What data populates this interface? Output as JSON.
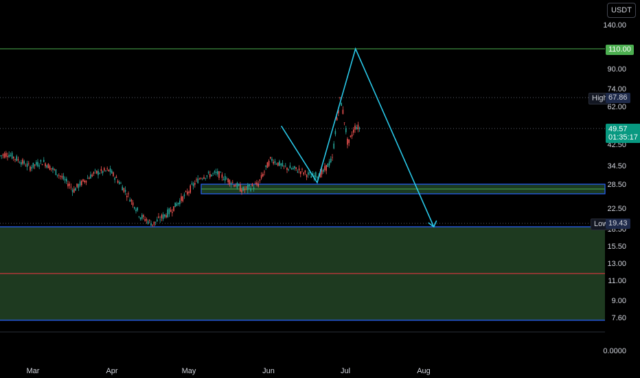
{
  "currency": "USDT",
  "price_axis": {
    "ticks": [
      "140.00",
      "90.00",
      "74.00",
      "62.00",
      "42.50",
      "34.50",
      "28.50",
      "22.50",
      "18.50",
      "15.50",
      "13.00",
      "11.00",
      "9.00",
      "7.60",
      "0.0000"
    ],
    "values": [
      140,
      90,
      74,
      62,
      42.5,
      34.5,
      28.5,
      22.5,
      18.5,
      15.5,
      13,
      11,
      9,
      7.6,
      0
    ]
  },
  "time_axis": {
    "labels": [
      "Mar",
      "Apr",
      "May",
      "Jun",
      "Jul",
      "Aug"
    ]
  },
  "tags": {
    "target": "110.00",
    "high_label": "High",
    "high_value": "67.86",
    "current_price": "49.57",
    "countdown": "01:35:17",
    "low_label": "Low",
    "low_value": "19.43"
  },
  "colors": {
    "background": "#000000",
    "up_candle": "#26a69a",
    "down_candle": "#ef5350",
    "projection": "#29c8e8",
    "target_line": "#4caf50",
    "green_zone": "#1e3a20",
    "blue_border": "#2962ff",
    "red_line": "#f23645"
  },
  "chart_data": {
    "type": "candlestick",
    "scale": "log",
    "series_summary": {
      "high": 67.86,
      "low": 19.43,
      "last": 49.57
    },
    "levels": {
      "target": 110.0,
      "support_zone": [
        26.5,
        28.8
      ],
      "demand_zone": [
        7.6,
        18.9
      ],
      "mid_line": 12.0
    },
    "projection_path": [
      {
        "x": "Jun 6",
        "y": 51
      },
      {
        "x": "Jun 20",
        "y": 29
      },
      {
        "x": "Jul 5",
        "y": 110
      },
      {
        "x": "Aug 5",
        "y": 18.9
      }
    ],
    "price_path": [
      {
        "x": "Feb 1",
        "y": 38
      },
      {
        "x": "Feb 10",
        "y": 36
      },
      {
        "x": "Feb 20",
        "y": 39
      },
      {
        "x": "Feb 28",
        "y": 34
      },
      {
        "x": "Mar 5",
        "y": 36
      },
      {
        "x": "Mar 12",
        "y": 31
      },
      {
        "x": "Mar 17",
        "y": 27
      },
      {
        "x": "Mar 25",
        "y": 32
      },
      {
        "x": "Mar 31",
        "y": 33
      },
      {
        "x": "Apr 6",
        "y": 27
      },
      {
        "x": "Apr 12",
        "y": 21
      },
      {
        "x": "Apr 17",
        "y": 19.43
      },
      {
        "x": "Apr 24",
        "y": 22
      },
      {
        "x": "Apr 30",
        "y": 26
      },
      {
        "x": "May 6",
        "y": 31
      },
      {
        "x": "May 12",
        "y": 32
      },
      {
        "x": "May 18",
        "y": 29
      },
      {
        "x": "May 22",
        "y": 27
      },
      {
        "x": "May 28",
        "y": 28.5
      },
      {
        "x": "Jun 2",
        "y": 37
      },
      {
        "x": "Jun 7",
        "y": 34
      },
      {
        "x": "Jun 13",
        "y": 33
      },
      {
        "x": "Jun 18",
        "y": 31
      },
      {
        "x": "Jun 22",
        "y": 32
      },
      {
        "x": "Jun 26",
        "y": 37
      },
      {
        "x": "Jun 29",
        "y": 67.86
      },
      {
        "x": "Jul 2",
        "y": 42
      },
      {
        "x": "Jul 5",
        "y": 51
      },
      {
        "x": "Jul 7",
        "y": 49.57
      }
    ]
  }
}
